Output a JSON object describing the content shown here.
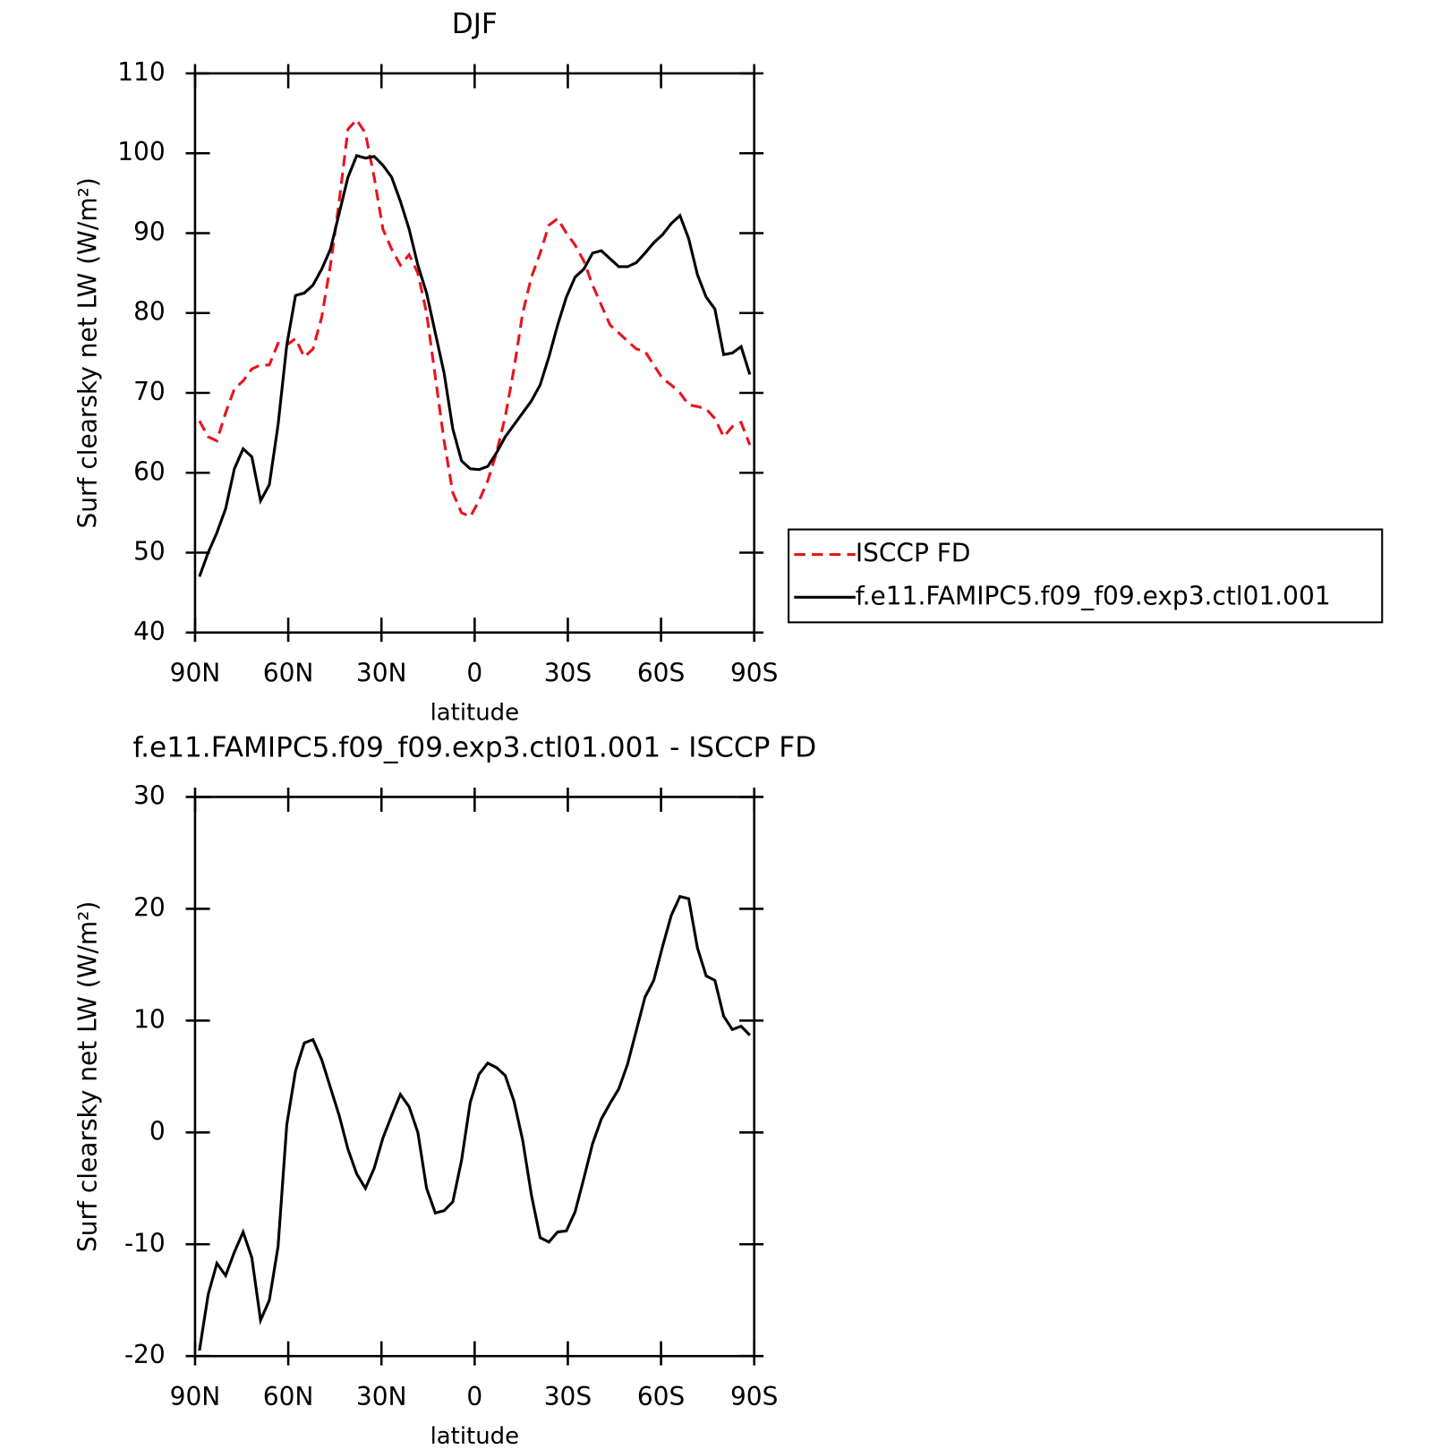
{
  "chart_data": [
    {
      "type": "line",
      "title": "DJF",
      "xlabel": "latitude",
      "ylabel": "Surf clearsky net LW (W/m²)",
      "x": [
        88.59,
        85.78,
        82.97,
        80.16,
        77.34,
        74.53,
        71.72,
        68.91,
        66.09,
        63.28,
        60.47,
        57.66,
        54.84,
        52.03,
        49.22,
        46.41,
        43.59,
        40.78,
        37.97,
        35.16,
        32.34,
        29.53,
        26.72,
        23.91,
        21.09,
        18.28,
        15.47,
        12.66,
        9.84,
        7.03,
        4.22,
        1.41,
        -1.41,
        -4.22,
        -7.03,
        -9.84,
        -12.66,
        -15.47,
        -18.28,
        -21.09,
        -23.91,
        -26.72,
        -29.53,
        -32.34,
        -35.16,
        -37.97,
        -40.78,
        -43.59,
        -46.41,
        -49.22,
        -52.03,
        -54.84,
        -57.66,
        -60.47,
        -63.28,
        -66.09,
        -68.91,
        -71.72,
        -74.53,
        -77.34,
        -80.16,
        -82.97,
        -85.78,
        -88.59
      ],
      "series": [
        {
          "name": "ISCCP FD",
          "color": "#e8141c",
          "style": "dashed",
          "values": [
            66.5,
            64.5,
            64,
            67.5,
            70.5,
            71.5,
            73,
            73.5,
            73.5,
            76.2,
            76,
            76.8,
            74.5,
            75.5,
            79.5,
            86,
            94,
            103,
            104.2,
            102.5,
            97,
            90.5,
            88,
            86,
            87.3,
            85,
            80,
            72,
            64,
            57.5,
            55,
            54.5,
            56.5,
            59,
            62.5,
            67,
            73,
            80,
            84.5,
            87.5,
            91,
            91.8,
            90,
            88.5,
            86.5,
            83.5,
            81,
            78.5,
            77.5,
            76.5,
            75.5,
            75.2,
            73.5,
            71.8,
            71,
            70,
            68.5,
            68.3,
            68,
            66.8,
            64.5,
            65.8,
            66.3,
            63.5
          ]
        },
        {
          "name": "f.e11.FAMIPC5.f09_f09.exp3.ctl01.001",
          "color": "#000000",
          "style": "solid",
          "values": [
            47,
            50,
            52.5,
            55.5,
            60.5,
            63,
            62,
            56.5,
            58.5,
            66,
            76,
            82.2,
            82.5,
            83.5,
            85.5,
            88,
            92.5,
            97,
            99.7,
            99.4,
            99.6,
            98.5,
            97,
            94,
            90.5,
            86,
            82.5,
            77.5,
            72.5,
            65.5,
            61.5,
            60.5,
            60.4,
            60.8,
            62.5,
            64.5,
            66,
            67.5,
            69,
            71,
            74.5,
            78.5,
            82,
            84.5,
            85.5,
            87.5,
            87.8,
            86.8,
            85.8,
            85.8,
            86.3,
            87.5,
            88.8,
            89.8,
            91.2,
            92.2,
            89.3,
            84.8,
            82,
            80.5,
            74.8,
            75,
            75.8,
            72.3
          ]
        }
      ],
      "xlim": [
        90,
        -90
      ],
      "xticks": [
        {
          "value": 90,
          "label": "90N"
        },
        {
          "value": 60,
          "label": "60N"
        },
        {
          "value": 30,
          "label": "30N"
        },
        0,
        {
          "value": -30,
          "label": "30S"
        },
        {
          "value": -60,
          "label": "60S"
        },
        {
          "value": -90,
          "label": "90S"
        }
      ],
      "ylim": [
        40,
        110
      ],
      "yticks": [
        40,
        50,
        60,
        70,
        80,
        90,
        100,
        110
      ],
      "legend": "right"
    },
    {
      "type": "line",
      "title": "f.e11.FAMIPC5.f09_f09.exp3.ctl01.001 - ISCCP FD",
      "xlabel": "latitude",
      "ylabel": "Surf clearsky net LW (W/m²)",
      "x": [
        88.59,
        85.78,
        82.97,
        80.16,
        77.34,
        74.53,
        71.72,
        68.91,
        66.09,
        63.28,
        60.47,
        57.66,
        54.84,
        52.03,
        49.22,
        46.41,
        43.59,
        40.78,
        37.97,
        35.16,
        32.34,
        29.53,
        26.72,
        23.91,
        21.09,
        18.28,
        15.47,
        12.66,
        9.84,
        7.03,
        4.22,
        1.41,
        -1.41,
        -4.22,
        -7.03,
        -9.84,
        -12.66,
        -15.47,
        -18.28,
        -21.09,
        -23.91,
        -26.72,
        -29.53,
        -32.34,
        -35.16,
        -37.97,
        -40.78,
        -43.59,
        -46.41,
        -49.22,
        -52.03,
        -54.84,
        -57.66,
        -60.47,
        -63.28,
        -66.09,
        -68.91,
        -71.72,
        -74.53,
        -77.34,
        -80.16,
        -82.97,
        -85.78,
        -88.59
      ],
      "series": [
        {
          "color": "#000000",
          "style": "solid",
          "values": [
            -19.5,
            -14.5,
            -11.7,
            -12.8,
            -10.7,
            -8.9,
            -11.2,
            -16.8,
            -15,
            -10.2,
            0.7,
            5.5,
            8,
            8.3,
            6.5,
            4,
            1.5,
            -1.5,
            -3.7,
            -5,
            -3.2,
            -0.5,
            1.5,
            3.4,
            2.3,
            0,
            -5,
            -7.2,
            -7,
            -6.2,
            -2.5,
            2.7,
            5.2,
            6.2,
            5.8,
            5.1,
            2.8,
            -0.7,
            -5.6,
            -9.4,
            -9.8,
            -8.9,
            -8.8,
            -7.1,
            -4.1,
            -1,
            1.2,
            2.6,
            3.9,
            6.1,
            9.1,
            12.1,
            13.6,
            16.6,
            19.4,
            21.1,
            20.9,
            16.5,
            14,
            13.6,
            10.4,
            9.2,
            9.5,
            8.7
          ]
        }
      ],
      "xlim": [
        90,
        -90
      ],
      "xticks": [
        {
          "value": 90,
          "label": "90N"
        },
        {
          "value": 60,
          "label": "60N"
        },
        {
          "value": 30,
          "label": "30N"
        },
        0,
        {
          "value": -30,
          "label": "30S"
        },
        {
          "value": -60,
          "label": "60S"
        },
        {
          "value": -90,
          "label": "90S"
        }
      ],
      "ylim": [
        -20,
        30
      ],
      "yticks": [
        -20,
        -10,
        0,
        10,
        20,
        30
      ]
    }
  ]
}
